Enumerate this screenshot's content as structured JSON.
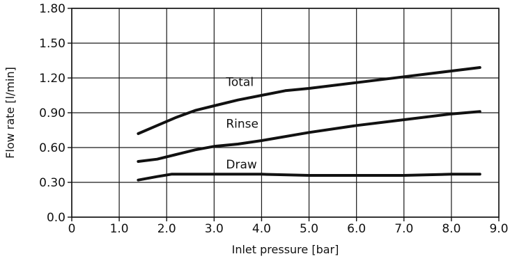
{
  "chart_data": {
    "type": "line",
    "title": "",
    "xlabel": "Inlet pressure [bar]",
    "ylabel": "Flow rate [l/min]",
    "xlim": [
      0,
      9
    ],
    "ylim": [
      0,
      1.8
    ],
    "x_ticks": [
      "0",
      "1.0",
      "2.0",
      "3.0",
      "4.0",
      "5.0",
      "6.0",
      "7.0",
      "8.0",
      "9.0"
    ],
    "y_ticks": [
      "0.0",
      "0.30",
      "0.60",
      "0.90",
      "1.20",
      "1.50",
      "1.80"
    ],
    "grid": true,
    "legend": "none",
    "series": [
      {
        "name": "Total",
        "label_at": [
          3.25,
          1.13
        ],
        "points": [
          [
            1.4,
            0.72
          ],
          [
            1.8,
            0.79
          ],
          [
            2.2,
            0.86
          ],
          [
            2.6,
            0.92
          ],
          [
            3.0,
            0.96
          ],
          [
            3.5,
            1.01
          ],
          [
            4.0,
            1.05
          ],
          [
            4.5,
            1.09
          ],
          [
            5.0,
            1.11
          ],
          [
            6.0,
            1.16
          ],
          [
            7.0,
            1.21
          ],
          [
            8.0,
            1.26
          ],
          [
            8.6,
            1.29
          ]
        ]
      },
      {
        "name": "Rinse",
        "label_at": [
          3.25,
          0.77
        ],
        "points": [
          [
            1.4,
            0.48
          ],
          [
            1.8,
            0.5
          ],
          [
            2.2,
            0.54
          ],
          [
            2.6,
            0.58
          ],
          [
            3.0,
            0.61
          ],
          [
            3.5,
            0.63
          ],
          [
            4.0,
            0.66
          ],
          [
            5.0,
            0.73
          ],
          [
            6.0,
            0.79
          ],
          [
            7.0,
            0.84
          ],
          [
            8.0,
            0.89
          ],
          [
            8.6,
            0.91
          ]
        ]
      },
      {
        "name": "Draw",
        "label_at": [
          3.25,
          0.42
        ],
        "points": [
          [
            1.4,
            0.32
          ],
          [
            1.8,
            0.35
          ],
          [
            2.1,
            0.37
          ],
          [
            3.0,
            0.37
          ],
          [
            4.0,
            0.37
          ],
          [
            5.0,
            0.36
          ],
          [
            6.0,
            0.36
          ],
          [
            7.0,
            0.36
          ],
          [
            8.0,
            0.37
          ],
          [
            8.6,
            0.37
          ]
        ]
      }
    ]
  }
}
